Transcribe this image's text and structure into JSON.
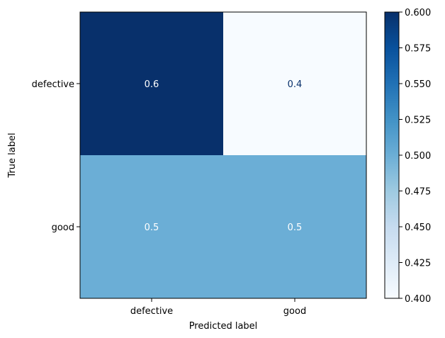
{
  "chart_data": {
    "type": "heatmap",
    "title": "",
    "xlabel": "Predicted label",
    "ylabel": "True label",
    "x_categories": [
      "defective",
      "good"
    ],
    "y_categories": [
      "defective",
      "good"
    ],
    "values": [
      [
        0.6,
        0.4
      ],
      [
        0.5,
        0.5
      ]
    ],
    "cell_labels": [
      [
        "0.6",
        "0.4"
      ],
      [
        "0.5",
        "0.5"
      ]
    ],
    "colormap": "Blues",
    "colorbar": {
      "range": [
        0.4,
        0.6
      ],
      "ticks": [
        0.4,
        0.425,
        0.45,
        0.475,
        0.5,
        0.525,
        0.55,
        0.575,
        0.6
      ],
      "tick_labels": [
        "0.400",
        "0.425",
        "0.450",
        "0.475",
        "0.500",
        "0.525",
        "0.550",
        "0.575",
        "0.600"
      ]
    },
    "colors": {
      "low": "#f7fbff",
      "high": "#08306b",
      "text_on_dark": "#ffffff",
      "text_on_light": "#08306b"
    }
  }
}
